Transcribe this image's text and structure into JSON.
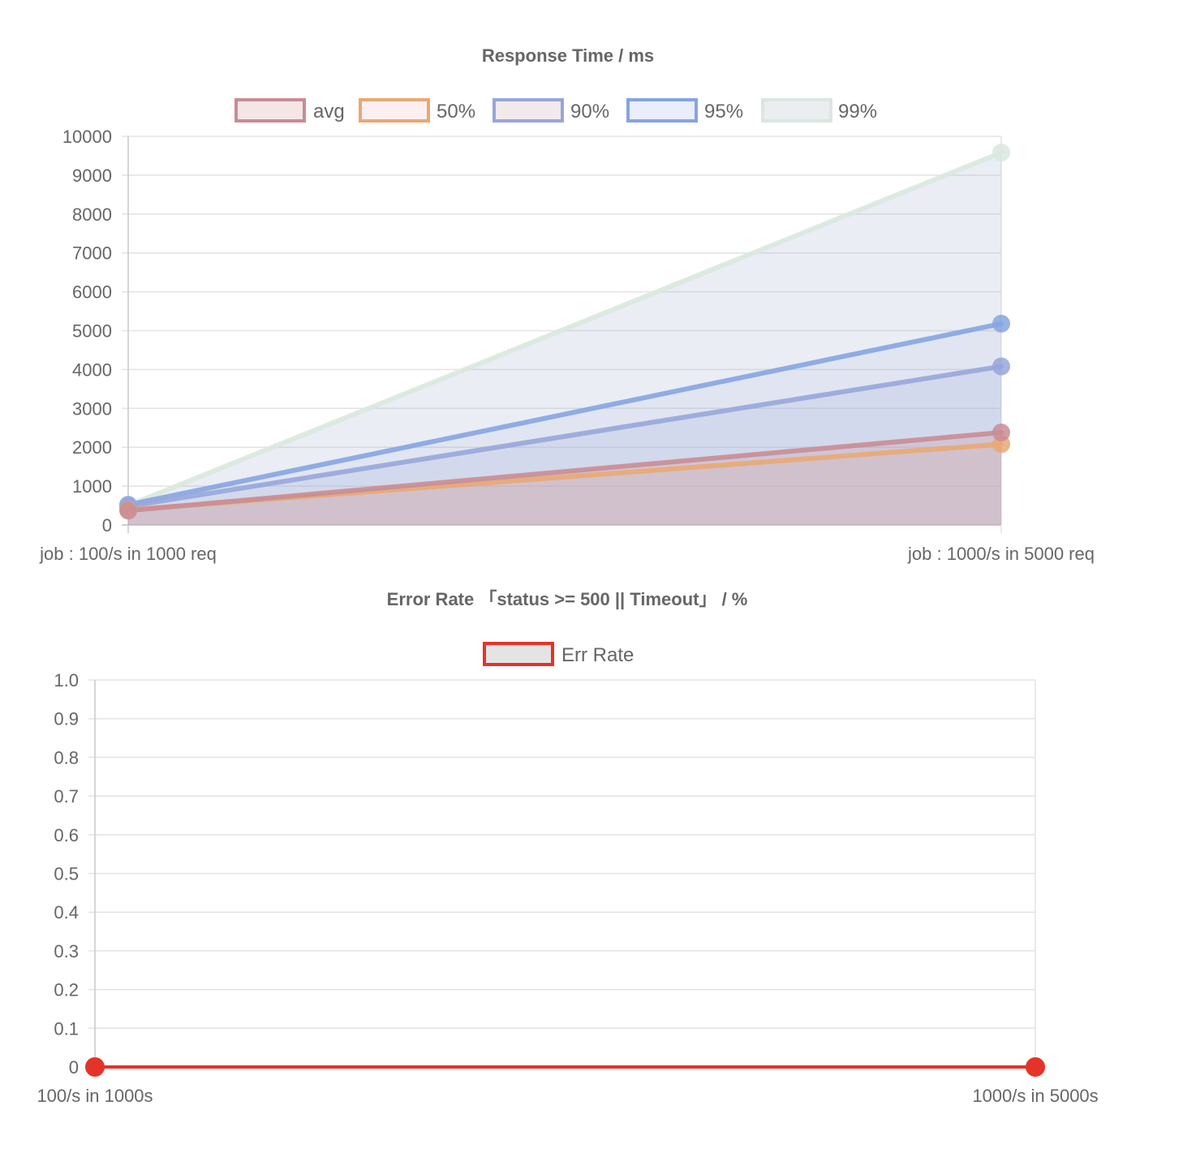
{
  "chart_data": [
    {
      "type": "area",
      "title": "Response Time / ms",
      "categories": [
        "job : 100/s in 1000 req",
        "job : 1000/s in 5000 req"
      ],
      "ylim": [
        0,
        10000
      ],
      "y_ticks": [
        "10000",
        "9000",
        "8000",
        "7000",
        "6000",
        "5000",
        "4000",
        "3000",
        "2000",
        "1000",
        "0"
      ],
      "grid": true,
      "legend_position": "top",
      "series": [
        {
          "name": "avg",
          "values": [
            370,
            2380
          ],
          "line_color": "#c98c95",
          "fill_color": "rgba(201,140,149,0.25)",
          "legend_fill": "#f4e6e6"
        },
        {
          "name": "50%",
          "values": [
            390,
            2080
          ],
          "line_color": "#e9a873",
          "fill_color": "rgba(233,168,115,0.10)",
          "legend_fill": "#fdeff0"
        },
        {
          "name": "90%",
          "values": [
            480,
            4080
          ],
          "line_color": "#97a6da",
          "fill_color": "rgba(151,166,218,0.18)",
          "legend_fill": "#f3e8ec"
        },
        {
          "name": "95%",
          "values": [
            520,
            5180
          ],
          "line_color": "#86a4e2",
          "fill_color": "rgba(134,164,226,0.10)",
          "legend_fill": "#eaedfb"
        },
        {
          "name": "99%",
          "values": [
            500,
            9580
          ],
          "line_color": "#d9e8de",
          "fill_color": "rgba(160,175,200,0.22)",
          "legend_fill": "#eaeef0"
        }
      ]
    },
    {
      "type": "line",
      "title": "Error Rate 「status >= 500 || Timeout」 / %",
      "categories": [
        "100/s in 1000s",
        "1000/s in 5000s"
      ],
      "ylim": [
        0,
        1
      ],
      "y_ticks": [
        "1.0",
        "0.9",
        "0.8",
        "0.7",
        "0.6",
        "0.5",
        "0.4",
        "0.3",
        "0.2",
        "0.1",
        "0"
      ],
      "grid": true,
      "legend_position": "top",
      "series": [
        {
          "name": "Err Rate",
          "values": [
            0,
            0
          ],
          "line_color": "#e5332a",
          "legend_fill": "#e4e4e4"
        }
      ]
    }
  ]
}
